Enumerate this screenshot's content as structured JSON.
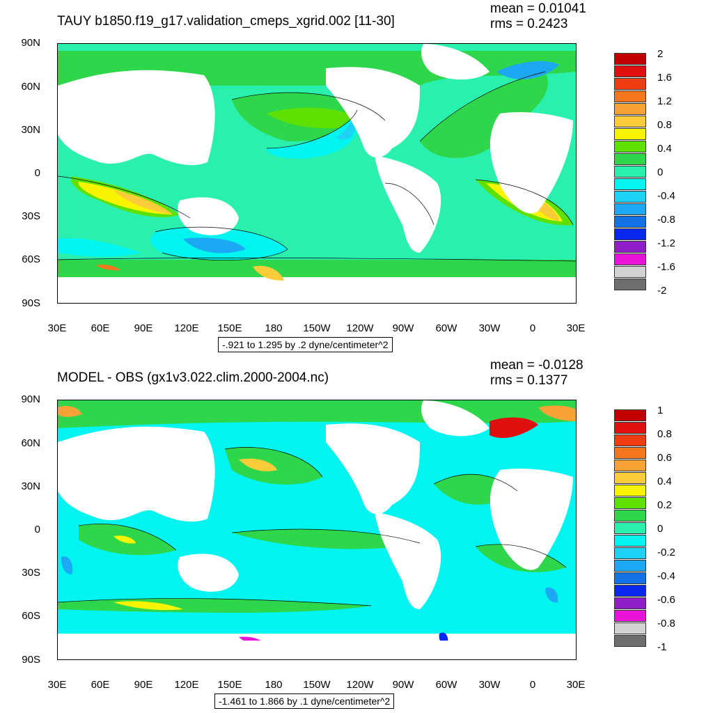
{
  "panels": [
    {
      "title": "TAUY b1850.f19_g17.validation_cmeps_xgrid.002 [11-30]",
      "mean_text": "mean = 0.01041",
      "rms_text": "rms = 0.2423",
      "range_text": "-.921 to 1.295 by .2 dyne/centimeter^2",
      "colorbar": {
        "labels": [
          "2",
          "1.6",
          "1.2",
          "0.8",
          "0.4",
          "0",
          "-0.4",
          "-0.8",
          "-1.2",
          "-1.6",
          "-2"
        ]
      }
    },
    {
      "title": "MODEL - OBS (gx1v3.022.clim.2000-2004.nc)",
      "mean_text": "mean = -0.0128",
      "rms_text": "rms = 0.1377",
      "range_text": "-1.461 to 1.866 by .1 dyne/centimeter^2",
      "colorbar": {
        "labels": [
          "1",
          "0.8",
          "0.6",
          "0.4",
          "0.2",
          "0",
          "-0.2",
          "-0.4",
          "-0.6",
          "-0.8",
          "-1"
        ]
      }
    }
  ],
  "axes": {
    "lat_labels": [
      "90N",
      "60N",
      "30N",
      "0",
      "30S",
      "60S",
      "90S"
    ],
    "lon_labels": [
      "30E",
      "60E",
      "90E",
      "120E",
      "150E",
      "180",
      "150W",
      "120W",
      "90W",
      "60W",
      "30W",
      "0",
      "30E"
    ]
  },
  "colors": {
    "scale": [
      "#c20000",
      "#e01010",
      "#f03d10",
      "#f5761c",
      "#f9a236",
      "#fbcc3a",
      "#f8f400",
      "#5ee000",
      "#2ed64a",
      "#2af0ae",
      "#00f5f0",
      "#1ed2f5",
      "#1ca8f2",
      "#1272e6",
      "#0828f0",
      "#8f1ec8",
      "#ea14d8",
      "#d2d2d2",
      "#6e6e6e"
    ],
    "land": "#ffffff",
    "ocean_top": "#2af0ae",
    "ocean_bottom": "#00f5f0"
  }
}
